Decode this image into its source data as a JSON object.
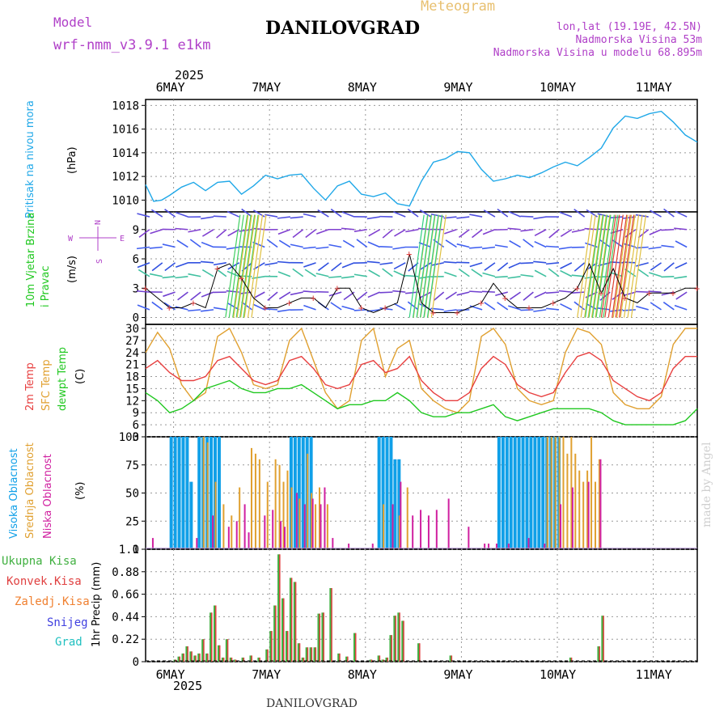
{
  "header": {
    "model_label": "Model",
    "model_name": "wrf-nmm_v3.9.1  e1km",
    "meteogram_label": "Meteogram",
    "station": "DANILOVGRAD",
    "lonlat": "lon,lat (19.19E, 42.5N)",
    "altitude": "Nadmorska Visina 53m",
    "model_altitude": "Nadmorska Visina u modelu 68.895m",
    "footer_station": "DANILOVGRAD",
    "watermark": "made by Angel"
  },
  "colors": {
    "purple": "#b040c8",
    "gold": "#e8c070",
    "pressure": "#20a8e8",
    "temp2m": "#e84040",
    "sfctemp": "#e0a030",
    "dewpt": "#20c820",
    "cloud_high": "#10a0e8",
    "cloud_mid": "#e0a030",
    "cloud_low": "#d020a0",
    "rain_total": "#40b040",
    "rain_conv": "#e04040",
    "rain_strat": "#f08030",
    "snow": "#4040e0",
    "grad": "#20c0c0"
  },
  "time_axis": {
    "year": "2025",
    "days": [
      "6MAY",
      "7MAY",
      "8MAY",
      "9MAY",
      "10MAY",
      "11MAY"
    ],
    "start": "2025-05-05 17:00",
    "end": "2025-05-11 12:00"
  },
  "chart_data": [
    {
      "type": "line",
      "panel": "pressure",
      "ylabel": "Pritisak na nivou mora",
      "unit": "(hPa)",
      "ylim": [
        1009,
        1018.5
      ],
      "yticks": [
        1010,
        1012,
        1014,
        1016,
        1018
      ],
      "grid": true,
      "series": [
        {
          "name": "Pritisak na nivou mora",
          "x_hours": [
            0,
            2,
            4,
            6,
            9,
            12,
            15,
            18,
            21,
            24,
            27,
            30,
            33,
            36,
            39,
            42,
            45,
            48,
            51,
            54,
            57,
            60,
            63,
            66,
            69,
            72,
            75,
            78,
            81,
            84,
            87,
            90,
            93,
            96,
            99,
            102,
            105,
            108,
            111,
            114,
            117,
            120,
            123,
            126,
            129,
            132,
            135,
            138
          ],
          "values": [
            1011.3,
            1009.9,
            1010.0,
            1010.4,
            1011.1,
            1011.5,
            1010.8,
            1011.5,
            1011.6,
            1010.5,
            1011.2,
            1012.1,
            1011.8,
            1012.1,
            1012.2,
            1011.0,
            1010.0,
            1011.2,
            1011.6,
            1010.5,
            1010.3,
            1010.6,
            1009.7,
            1009.5,
            1011.6,
            1013.2,
            1013.5,
            1014.1,
            1014.0,
            1012.6,
            1011.6,
            1011.8,
            1012.1,
            1011.9,
            1012.3,
            1012.8,
            1013.2,
            1012.9,
            1013.6,
            1014.4,
            1016.1,
            1017.1,
            1016.9,
            1017.3,
            1017.5,
            1016.6,
            1015.5,
            1014.9
          ]
        }
      ]
    },
    {
      "type": "line",
      "panel": "wind",
      "ylabel": "10m Vjetar Brzina i Pravac",
      "unit": "(m/s)",
      "ylim": [
        -0.7,
        10.8
      ],
      "yticks": [
        0,
        3,
        6,
        9
      ],
      "compass": [
        "N",
        "E",
        "S",
        "W"
      ],
      "grid": true,
      "series": [
        {
          "name": "10m Vjetar",
          "x_hours": [
            0,
            3,
            6,
            9,
            12,
            15,
            18,
            21,
            24,
            27,
            30,
            33,
            36,
            39,
            42,
            45,
            48,
            51,
            54,
            57,
            60,
            63,
            66,
            69,
            72,
            75,
            78,
            81,
            84,
            87,
            90,
            93,
            96,
            99,
            102,
            105,
            108,
            111,
            114,
            117,
            120,
            123,
            126,
            129,
            132,
            135,
            138
          ],
          "values": [
            3.0,
            2.0,
            1.0,
            1.0,
            1.5,
            1.0,
            5.0,
            5.5,
            4.0,
            2.0,
            1.0,
            1.0,
            1.5,
            2.0,
            2.0,
            1.0,
            3.0,
            3.0,
            1.0,
            0.5,
            1.0,
            1.5,
            6.5,
            1.5,
            0.5,
            0.5,
            0.5,
            1.0,
            1.5,
            3.5,
            2.0,
            1.0,
            1.0,
            1.0,
            1.5,
            2.0,
            3.0,
            5.5,
            2.5,
            5.0,
            2.0,
            1.5,
            2.5,
            2.5,
            2.5,
            3.0,
            3.0
          ]
        }
      ]
    },
    {
      "type": "line",
      "panel": "temperature",
      "ylabel": "(C)",
      "yticks": [
        3,
        6,
        9,
        12,
        15,
        18,
        21,
        24,
        27,
        30
      ],
      "ylim": [
        3,
        31
      ],
      "grid": true,
      "series": [
        {
          "name": "2m Temp",
          "x_hours": [
            0,
            3,
            6,
            9,
            12,
            15,
            18,
            21,
            24,
            27,
            30,
            33,
            36,
            39,
            42,
            45,
            48,
            51,
            54,
            57,
            60,
            63,
            66,
            69,
            72,
            75,
            78,
            81,
            84,
            87,
            90,
            93,
            96,
            99,
            102,
            105,
            108,
            111,
            114,
            117,
            120,
            123,
            126,
            129,
            132,
            135,
            138
          ],
          "values": [
            20,
            22,
            19,
            17,
            17,
            18,
            22,
            23,
            20,
            17,
            16,
            17,
            22,
            23,
            20,
            16,
            15,
            16,
            21,
            22,
            19,
            20,
            23,
            17,
            14,
            12,
            12,
            14,
            20,
            23,
            21,
            16,
            14,
            13,
            14,
            19,
            23,
            24,
            22,
            17,
            15,
            13,
            12,
            14,
            20,
            23,
            23
          ]
        },
        {
          "name": "SFC Temp",
          "x_hours": [
            0,
            3,
            6,
            9,
            12,
            15,
            18,
            21,
            24,
            27,
            30,
            33,
            36,
            39,
            42,
            45,
            48,
            51,
            54,
            57,
            60,
            63,
            66,
            69,
            72,
            75,
            78,
            81,
            84,
            87,
            90,
            93,
            96,
            99,
            102,
            105,
            108,
            111,
            114,
            117,
            120,
            123,
            126,
            129,
            132,
            135,
            138
          ],
          "values": [
            24,
            29,
            25,
            16,
            12,
            14,
            28,
            30,
            24,
            16,
            15,
            16,
            27,
            30,
            22,
            14,
            10,
            12,
            27,
            30,
            18,
            25,
            27,
            15,
            12,
            10,
            9,
            12,
            28,
            30,
            26,
            15,
            12,
            11,
            12,
            24,
            30,
            29,
            26,
            14,
            11,
            10,
            10,
            13,
            26,
            30,
            30
          ]
        },
        {
          "name": "dewpt Temp",
          "x_hours": [
            0,
            3,
            6,
            9,
            12,
            15,
            18,
            21,
            24,
            27,
            30,
            33,
            36,
            39,
            42,
            45,
            48,
            51,
            54,
            57,
            60,
            63,
            66,
            69,
            72,
            75,
            78,
            81,
            84,
            87,
            90,
            93,
            96,
            99,
            102,
            105,
            108,
            111,
            114,
            117,
            120,
            123,
            126,
            129,
            132,
            135,
            138
          ],
          "values": [
            14,
            12,
            9,
            10,
            12,
            15,
            16,
            17,
            15,
            14,
            14,
            15,
            15,
            16,
            14,
            12,
            10,
            11,
            11,
            12,
            12,
            14,
            12,
            9,
            8,
            8,
            9,
            9,
            10,
            11,
            8,
            7,
            8,
            9,
            10,
            10,
            10,
            10,
            9,
            7,
            6,
            6,
            6,
            6,
            6,
            7,
            10
          ]
        }
      ]
    },
    {
      "type": "bar",
      "panel": "clouds",
      "ylabel": "(%)",
      "ylim": [
        0,
        100
      ],
      "yticks": [
        0,
        25,
        50,
        75,
        100
      ],
      "grid": true,
      "series": [
        {
          "name": "Visoka Oblacnost",
          "x_hours": [
            6,
            7,
            8,
            9,
            10,
            11,
            13,
            14,
            15,
            16,
            17,
            18,
            36,
            37,
            38,
            39,
            40,
            41,
            58,
            59,
            60,
            61,
            62,
            63,
            88,
            89,
            90,
            91,
            92,
            93,
            94,
            95,
            96,
            97,
            98,
            99,
            100,
            101,
            102,
            103
          ],
          "values": [
            100,
            100,
            100,
            100,
            100,
            60,
            100,
            100,
            100,
            100,
            100,
            100,
            100,
            100,
            100,
            100,
            100,
            100,
            100,
            100,
            100,
            100,
            80,
            80,
            100,
            100,
            100,
            100,
            100,
            100,
            100,
            100,
            100,
            100,
            100,
            100,
            100,
            100,
            100,
            100
          ]
        },
        {
          "name": "Srednja Oblacnost",
          "x_hours": [
            14,
            15,
            17,
            19,
            21,
            23,
            26,
            27,
            28,
            30,
            32,
            33,
            34,
            35,
            36,
            38,
            40,
            41,
            42,
            43,
            45,
            59,
            63,
            65,
            100,
            101,
            102,
            103,
            104,
            105,
            106,
            107,
            108,
            109,
            110,
            111,
            112,
            113
          ],
          "values": [
            100,
            95,
            60,
            40,
            30,
            55,
            90,
            85,
            80,
            60,
            80,
            75,
            60,
            70,
            55,
            45,
            85,
            50,
            40,
            55,
            40,
            40,
            30,
            55,
            100,
            100,
            100,
            100,
            100,
            85,
            100,
            85,
            70,
            60,
            70,
            100,
            60,
            80
          ]
        },
        {
          "name": "Niska Oblacnost",
          "x_hours": [
            1,
            12,
            16,
            20,
            22,
            24,
            25,
            29,
            31,
            33,
            34,
            37,
            39,
            41,
            43,
            44,
            46,
            50,
            56,
            61,
            63,
            66,
            68,
            70,
            72,
            75,
            80,
            84,
            85,
            87,
            90,
            95,
            99,
            103,
            106,
            110,
            113
          ],
          "values": [
            10,
            10,
            30,
            20,
            25,
            40,
            15,
            30,
            35,
            25,
            20,
            50,
            40,
            45,
            40,
            55,
            10,
            5,
            5,
            40,
            60,
            30,
            35,
            30,
            35,
            45,
            20,
            5,
            5,
            5,
            5,
            10,
            5,
            40,
            55,
            60,
            80
          ]
        }
      ]
    },
    {
      "type": "bar",
      "panel": "precip",
      "ylabel": "1hr Precip (mm)",
      "ylim": [
        0,
        1.1
      ],
      "yticks": [
        0,
        0.22,
        0.44,
        0.66,
        0.88,
        1.1
      ],
      "ytick_labels": [
        "0",
        "0.22",
        "0.44",
        "0.66",
        "0.88",
        "1.1"
      ],
      "grid": true,
      "legend": [
        "Ukupna Kisa",
        "Konvek.Kisa",
        "Zaledj.Kisa",
        "Snijeg",
        "Grad"
      ],
      "series": [
        {
          "name": "Ukupna Kisa",
          "x_hours": [
            7,
            8,
            9,
            10,
            11,
            12,
            13,
            14,
            15,
            16,
            17,
            18,
            19,
            20,
            21,
            22,
            24,
            26,
            28,
            30,
            31,
            32,
            33,
            34,
            35,
            36,
            37,
            38,
            39,
            40,
            41,
            42,
            43,
            44,
            46,
            48,
            50,
            52,
            56,
            58,
            59,
            60,
            61,
            62,
            63,
            64,
            68,
            76,
            106,
            113,
            114
          ],
          "values": [
            0.02,
            0.05,
            0.08,
            0.15,
            0.1,
            0.06,
            0.08,
            0.22,
            0.08,
            0.48,
            0.55,
            0.16,
            0.04,
            0.22,
            0.04,
            0.02,
            0.04,
            0.06,
            0.04,
            0.12,
            0.3,
            0.55,
            1.05,
            0.62,
            0.3,
            0.82,
            0.78,
            0.18,
            0.04,
            0.14,
            0.14,
            0.14,
            0.47,
            0.48,
            0.72,
            0.08,
            0.05,
            0.28,
            0.02,
            0.06,
            0.02,
            0.04,
            0.26,
            0.45,
            0.48,
            0.4,
            0.18,
            0.06,
            0.04,
            0.15,
            0.45
          ]
        }
      ]
    }
  ]
}
